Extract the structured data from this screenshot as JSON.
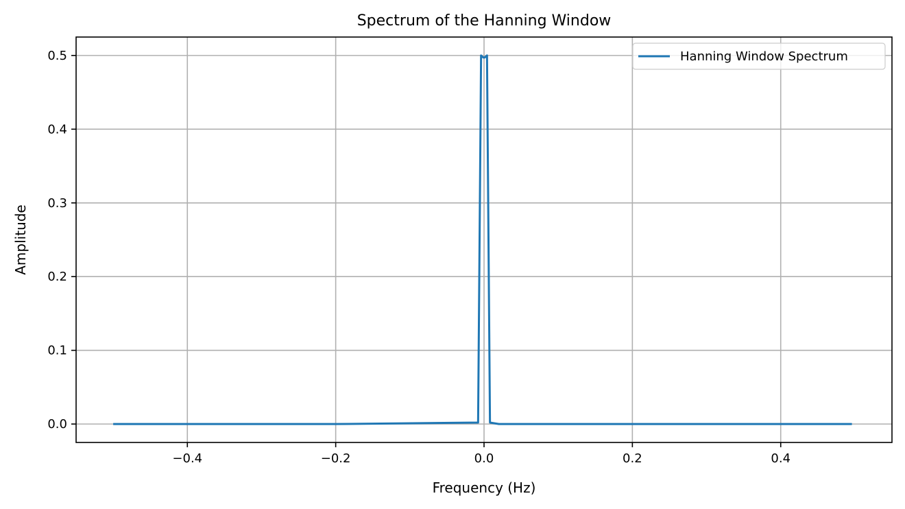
{
  "chart_data": {
    "type": "line",
    "title": "Spectrum of the Hanning Window",
    "xlabel": "Frequency (Hz)",
    "ylabel": "Amplitude",
    "xlim": [
      -0.55,
      0.55
    ],
    "ylim": [
      -0.025,
      0.525
    ],
    "grid": true,
    "legend_position": "top-right",
    "x_ticks": [
      -0.4,
      -0.2,
      0.0,
      0.2,
      0.4
    ],
    "x_tick_labels": [
      "−0.4",
      "−0.2",
      "0.0",
      "0.2",
      "0.4"
    ],
    "y_ticks": [
      0.0,
      0.1,
      0.2,
      0.3,
      0.4,
      0.5
    ],
    "y_tick_labels": [
      "0.0",
      "0.1",
      "0.2",
      "0.3",
      "0.4",
      "0.5"
    ],
    "series": [
      {
        "name": "Hanning Window Spectrum",
        "color": "#1f77b4",
        "x": [
          -0.5,
          -0.2,
          -0.008,
          -0.004,
          -0.002,
          0.0,
          0.002,
          0.004,
          0.008,
          0.02,
          0.2,
          0.496
        ],
        "y": [
          0.0,
          0.0,
          0.002,
          0.5,
          0.498,
          0.497,
          0.498,
          0.5,
          0.002,
          0.0,
          0.0,
          0.0
        ]
      }
    ]
  }
}
